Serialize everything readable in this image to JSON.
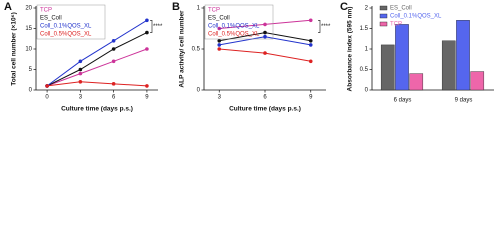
{
  "chart_data": [
    {
      "type": "line",
      "title": "A",
      "xlabel": "Culture time (days p.s.)",
      "ylabel": "Total cell number (×10⁶)",
      "x": [
        0,
        3,
        6,
        9
      ],
      "xlim": [
        -1,
        10
      ],
      "xticks": [
        0,
        3,
        6,
        9
      ],
      "ylim": [
        0,
        20
      ],
      "yticks": [
        0,
        5,
        10,
        15,
        20
      ],
      "annotation": "****",
      "series": [
        {
          "name": "TCP",
          "color": "#cc3399",
          "values": [
            1,
            4,
            7,
            10
          ]
        },
        {
          "name": "ES_Coll",
          "color": "#111111",
          "values": [
            1,
            5,
            10,
            14
          ]
        },
        {
          "name": "Coll_0.1%QOS_XL",
          "color": "#2233cc",
          "values": [
            1,
            7,
            12,
            17
          ]
        },
        {
          "name": "Coll_0.5%QOS_XL",
          "color": "#dd2222",
          "values": [
            1,
            2,
            1.5,
            1
          ]
        }
      ]
    },
    {
      "type": "line",
      "title": "B",
      "xlabel": "Culture time (days p.s.)",
      "ylabel": "ALP activity/ cell number",
      "x": [
        3,
        6,
        9
      ],
      "xlim": [
        2,
        10
      ],
      "xticks": [
        3,
        6,
        9
      ],
      "ylim": [
        0,
        1
      ],
      "yticks": [
        0,
        0.5,
        1
      ],
      "annotation": "****",
      "series": [
        {
          "name": "TCP",
          "color": "#cc3399",
          "values": [
            0.75,
            0.8,
            0.85
          ]
        },
        {
          "name": "ES_Coll",
          "color": "#111111",
          "values": [
            0.6,
            0.7,
            0.6
          ]
        },
        {
          "name": "Coll_0.1%QOS_XL",
          "color": "#2233cc",
          "values": [
            0.55,
            0.65,
            0.55
          ]
        },
        {
          "name": "Coll_0.5%QOS_XL",
          "color": "#dd2222",
          "values": [
            0.5,
            0.45,
            0.35
          ]
        }
      ]
    },
    {
      "type": "bar",
      "title": "C",
      "ylabel": "Absorbance index (595 nm)",
      "categories": [
        "6 days",
        "9 days"
      ],
      "ylim": [
        0,
        2
      ],
      "yticks": [
        0,
        0.5,
        1,
        1.5,
        2
      ],
      "series": [
        {
          "name": "ES_Coll",
          "color": "#666666",
          "values": [
            1.1,
            1.2
          ]
        },
        {
          "name": "Coll_0.1%QOS_XL",
          "color": "#5566ee",
          "values": [
            1.6,
            1.7
          ]
        },
        {
          "name": "TCP",
          "color": "#ee66aa",
          "values": [
            0.4,
            0.45
          ]
        }
      ]
    }
  ]
}
